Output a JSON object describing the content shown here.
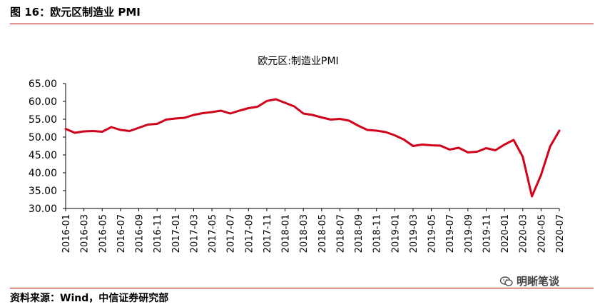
{
  "header": {
    "figure_title": "图 16：欧元区制造业 PMI"
  },
  "footer": {
    "source": "资料来源：Wind，中信证券研究部",
    "watermark": "明晰笔谈"
  },
  "colors": {
    "rule": "#c00000",
    "series": "#d0021b"
  },
  "chart_data": {
    "type": "line",
    "title": "欧元区:制造业PMI",
    "xlabel": "",
    "ylabel": "",
    "ylim": [
      30,
      65
    ],
    "yticks": [
      "30.00",
      "35.00",
      "40.00",
      "45.00",
      "50.00",
      "55.00",
      "60.00",
      "65.00"
    ],
    "grid": false,
    "legend": "none",
    "x_tick_labels": [
      "2016-01",
      "2016-03",
      "2016-05",
      "2016-07",
      "2016-09",
      "2016-11",
      "2017-01",
      "2017-03",
      "2017-05",
      "2017-07",
      "2017-09",
      "2017-11",
      "2018-01",
      "2018-03",
      "2018-05",
      "2018-07",
      "2018-09",
      "2018-11",
      "2019-01",
      "2019-03",
      "2019-05",
      "2019-07",
      "2019-09",
      "2019-11",
      "2020-01",
      "2020-03",
      "2020-05",
      "2020-07"
    ],
    "x": [
      "2016-01",
      "2016-02",
      "2016-03",
      "2016-04",
      "2016-05",
      "2016-06",
      "2016-07",
      "2016-08",
      "2016-09",
      "2016-10",
      "2016-11",
      "2016-12",
      "2017-01",
      "2017-02",
      "2017-03",
      "2017-04",
      "2017-05",
      "2017-06",
      "2017-07",
      "2017-08",
      "2017-09",
      "2017-10",
      "2017-11",
      "2017-12",
      "2018-01",
      "2018-02",
      "2018-03",
      "2018-04",
      "2018-05",
      "2018-06",
      "2018-07",
      "2018-08",
      "2018-09",
      "2018-10",
      "2018-11",
      "2018-12",
      "2019-01",
      "2019-02",
      "2019-03",
      "2019-04",
      "2019-05",
      "2019-06",
      "2019-07",
      "2019-08",
      "2019-09",
      "2019-10",
      "2019-11",
      "2019-12",
      "2020-01",
      "2020-02",
      "2020-03",
      "2020-04",
      "2020-05",
      "2020-06",
      "2020-07"
    ],
    "series": [
      {
        "values": [
          52.3,
          51.2,
          51.6,
          51.7,
          51.5,
          52.8,
          52.0,
          51.7,
          52.6,
          53.5,
          53.7,
          54.9,
          55.2,
          55.4,
          56.2,
          56.7,
          57.0,
          57.4,
          56.6,
          57.4,
          58.1,
          58.5,
          60.1,
          60.6,
          59.6,
          58.6,
          56.6,
          56.2,
          55.5,
          54.9,
          55.1,
          54.6,
          53.2,
          52.0,
          51.8,
          51.4,
          50.5,
          49.3,
          47.5,
          47.9,
          47.7,
          47.6,
          46.5,
          47.0,
          45.7,
          45.9,
          46.9,
          46.3,
          47.9,
          49.2,
          44.5,
          33.4,
          39.4,
          47.4,
          51.8
        ]
      }
    ]
  }
}
